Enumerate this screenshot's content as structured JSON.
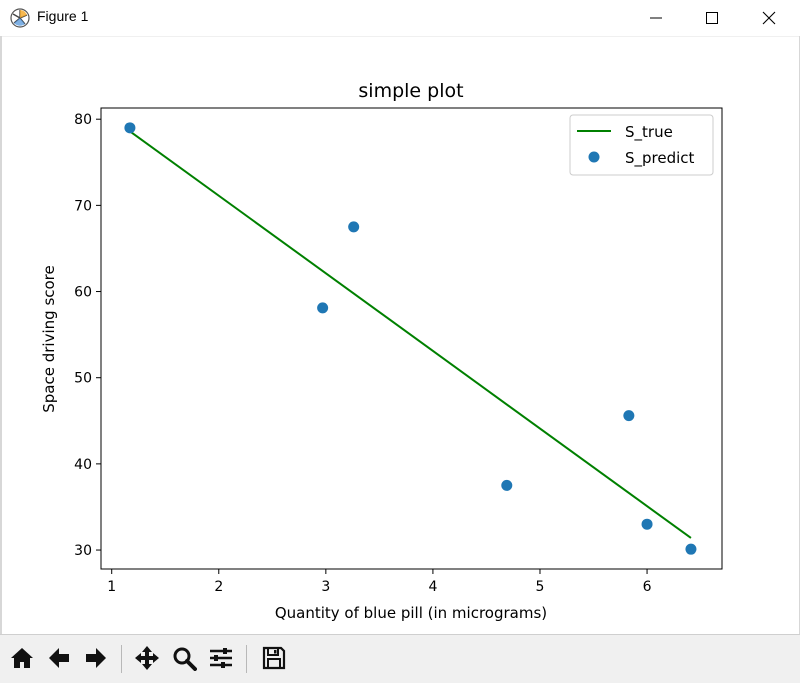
{
  "window": {
    "title": "Figure 1"
  },
  "toolbar": {
    "buttons": [
      {
        "name": "home-button",
        "icon": "home-icon"
      },
      {
        "name": "back-button",
        "icon": "arrow-left-icon"
      },
      {
        "name": "forward-button",
        "icon": "arrow-right-icon"
      },
      {
        "name": "pan-button",
        "icon": "pan-icon"
      },
      {
        "name": "zoom-button",
        "icon": "magnifier-icon"
      },
      {
        "name": "configure-subplots-button",
        "icon": "sliders-icon"
      },
      {
        "name": "save-button",
        "icon": "floppy-disk-icon"
      }
    ]
  },
  "chart_data": {
    "type": "scatter",
    "title": "simple plot",
    "xlabel": "Quantity of blue pill (in micrograms)",
    "ylabel": "Space driving score",
    "xlim": [
      0.9,
      6.7
    ],
    "ylim": [
      27.8,
      81.3
    ],
    "xticks": [
      1,
      2,
      3,
      4,
      5,
      6
    ],
    "yticks": [
      30,
      40,
      50,
      60,
      70,
      80
    ],
    "grid": false,
    "legend_position": "top-right",
    "series": [
      {
        "name": "S_true",
        "kind": "line",
        "color": "#008000",
        "x": [
          1.17,
          6.41
        ],
        "y": [
          78.6,
          31.4
        ]
      },
      {
        "name": "S_predict",
        "kind": "scatter",
        "color": "#1f77b4",
        "x": [
          1.17,
          2.97,
          3.26,
          4.69,
          5.83,
          6.0,
          6.41
        ],
        "y": [
          79.0,
          58.1,
          67.5,
          37.5,
          45.6,
          33.0,
          30.1
        ]
      }
    ]
  }
}
